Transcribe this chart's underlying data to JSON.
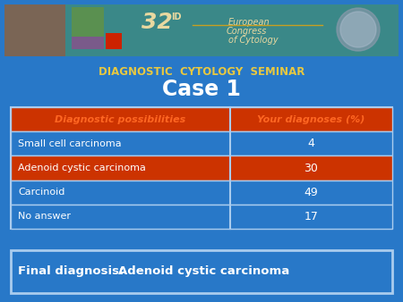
{
  "bg_color": "#2878c8",
  "seminar_title": "DIAGNOSTIC  CYTOLOGY  SEMINAR",
  "case_title": "Case 1",
  "header_col1": "Diagnostic possibilities",
  "header_col2": "Your diagnoses (%)",
  "header_bg": "#cc3300",
  "header_text_color": "#ff6622",
  "rows": [
    {
      "label": "Small cell carcinoma",
      "value": "4",
      "highlighted": false
    },
    {
      "label": "Adenoid cystic carcinoma",
      "value": "30",
      "highlighted": true
    },
    {
      "label": "Carcinoid",
      "value": "49",
      "highlighted": false
    },
    {
      "label": "No answer",
      "value": "17",
      "highlighted": false
    }
  ],
  "row_bg_normal": "#2878c8",
  "row_bg_highlight": "#cc3300",
  "row_text_color": "#ffffff",
  "table_border_color": "#aaccee",
  "col_split": 0.575,
  "final_label": "Final diagnosis: ",
  "final_value": "Adenoid cystic carcinoma",
  "final_bg": "#2878c8",
  "final_border": "#aaccee",
  "final_text_color": "#ffffff",
  "final_value_color": "#ffffff",
  "seminar_text_color": "#e8c840",
  "case_text_color": "#ffffff",
  "banner_bg": "#3a8888",
  "banner_left_bg": "#7a6555",
  "banner_green": "#5a9050",
  "banner_purple": "#7a5a8a",
  "banner_red": "#cc2200",
  "banner_gold": "#c8a020",
  "banner_logo_color": "#b0a898"
}
